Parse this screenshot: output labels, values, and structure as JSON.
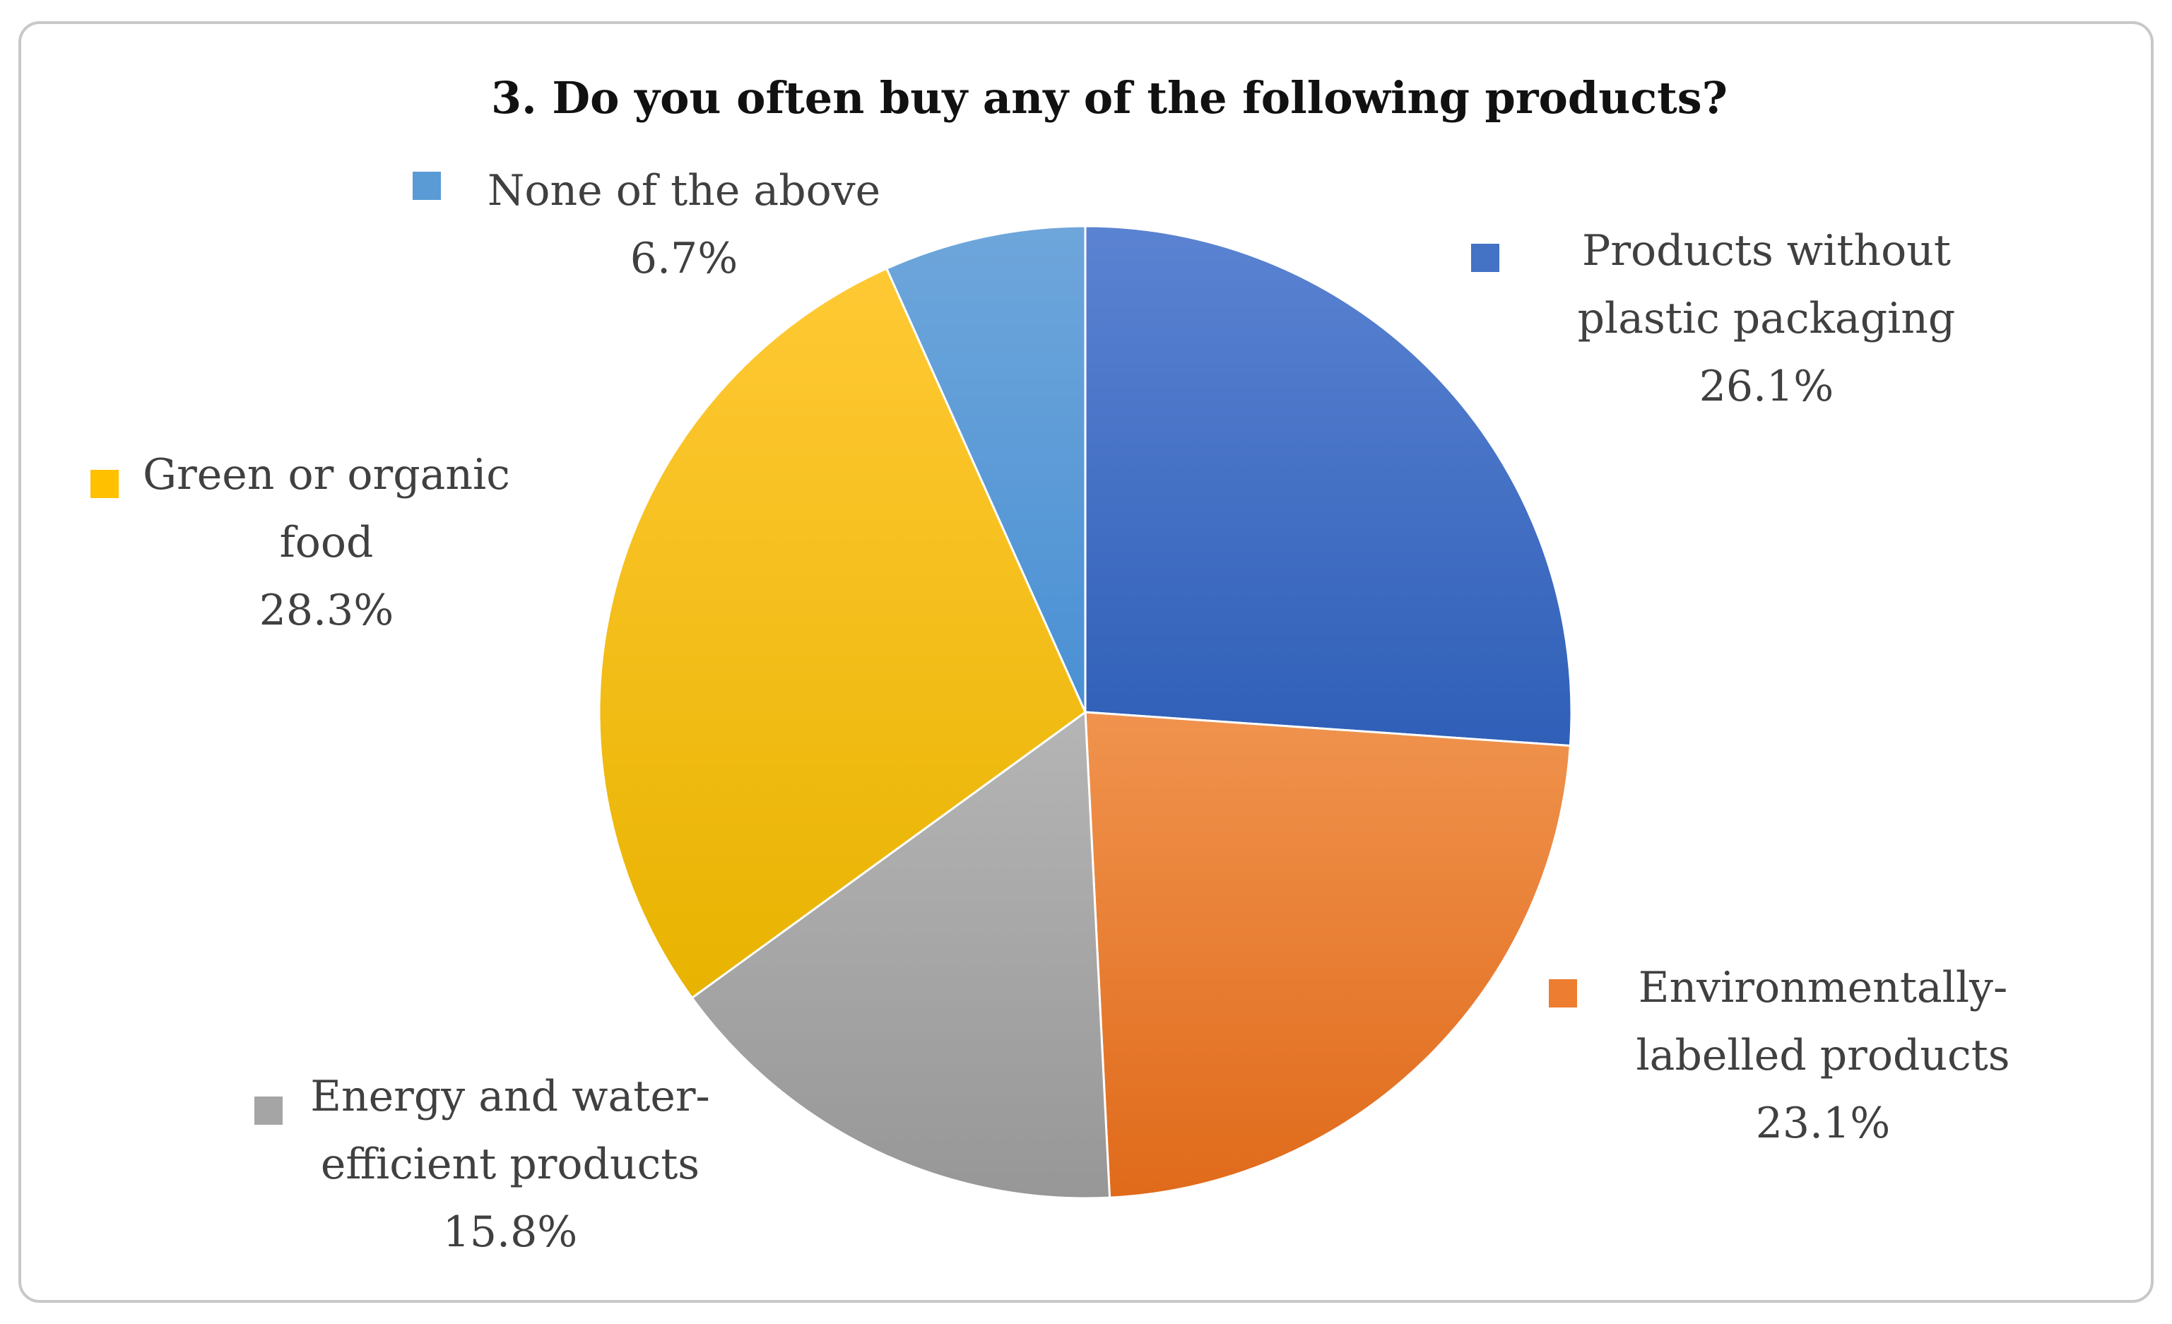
{
  "chart_data": {
    "type": "pie",
    "title": "3. Do you often buy any of the following products?",
    "slices": [
      {
        "label_lines": [
          "Products without",
          "plastic packaging"
        ],
        "value": 26.1,
        "value_label": "26.1%",
        "color": "#4472c4"
      },
      {
        "label_lines": [
          "Environmentally-",
          "labelled products"
        ],
        "value": 23.1,
        "value_label": "23.1%",
        "color": "#ed7d31"
      },
      {
        "label_lines": [
          "Energy and water-",
          "efficient products"
        ],
        "value": 15.8,
        "value_label": "15.8%",
        "color": "#a5a5a5"
      },
      {
        "label_lines": [
          "Green or organic",
          "food"
        ],
        "value": 28.3,
        "value_label": "28.3%",
        "color": "#ffc000"
      },
      {
        "label_lines": [
          "None of the above"
        ],
        "value": 6.7,
        "value_label": "6.7%",
        "color": "#5b9bd5"
      }
    ],
    "start_angle": "12 o'clock",
    "direction": "clockwise",
    "legend": "data labels beside slices"
  }
}
